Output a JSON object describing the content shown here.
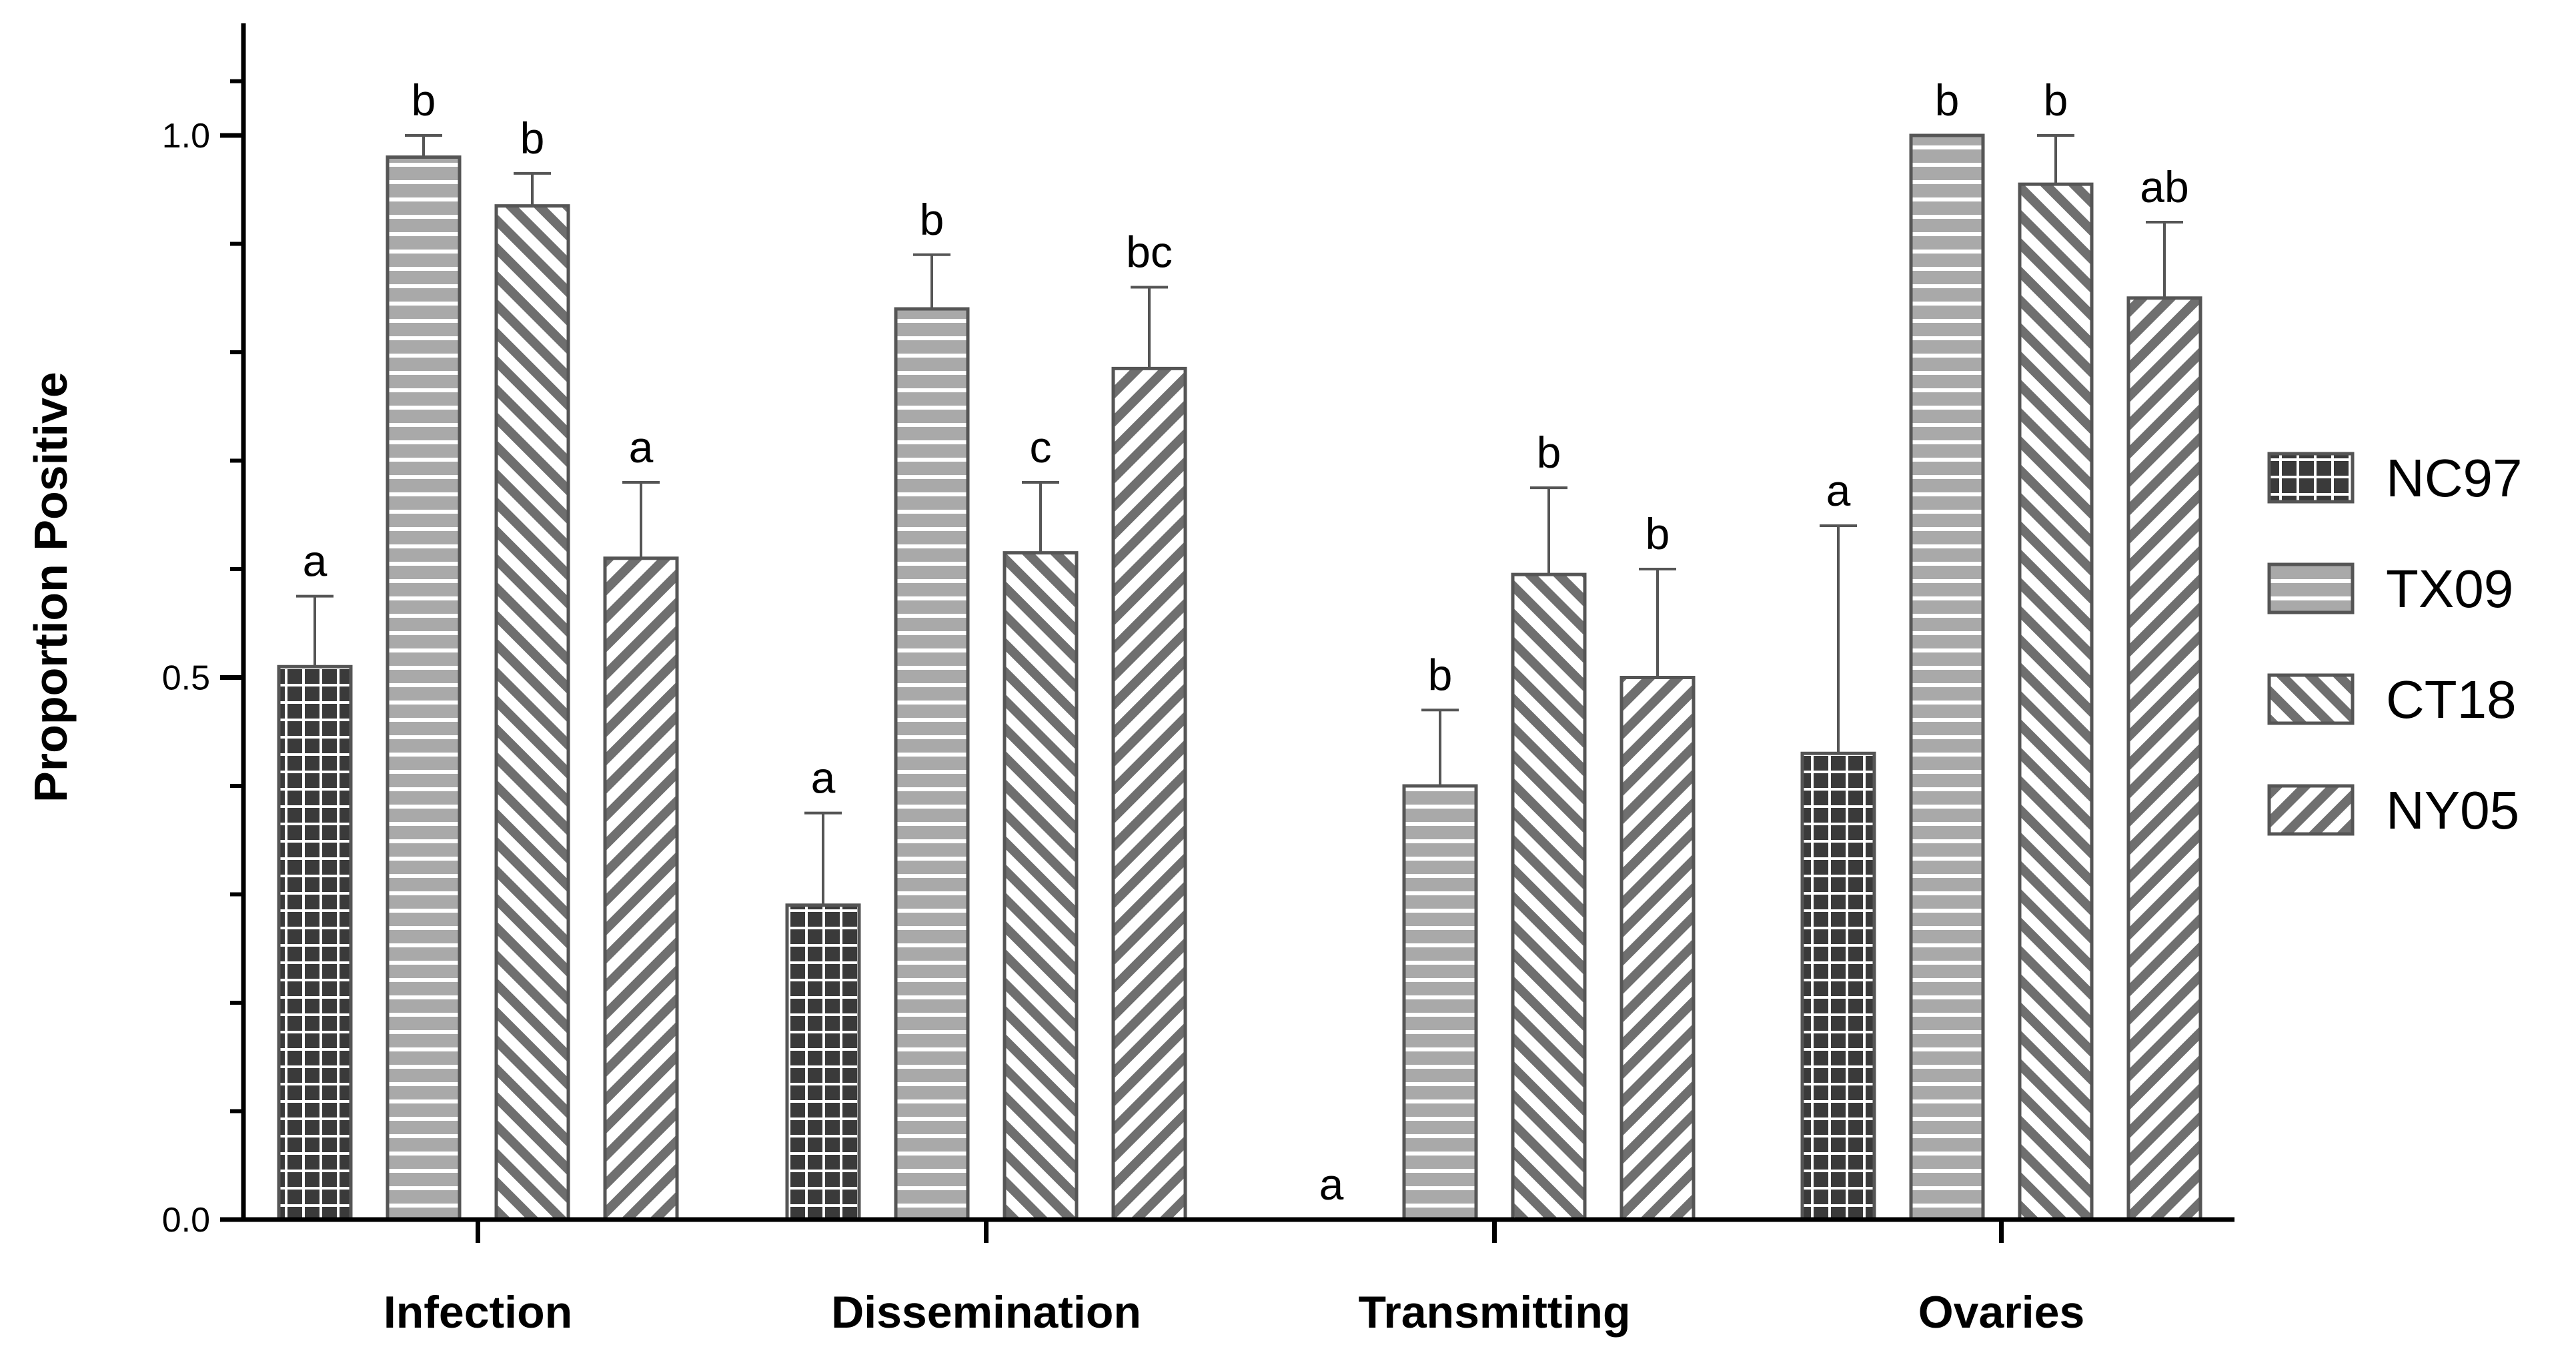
{
  "chart_data": {
    "type": "bar",
    "title": "",
    "xlabel": "",
    "ylabel": "Proportion Positive",
    "ylim": [
      0,
      1.1
    ],
    "yticks": [
      0.0,
      0.5,
      1.0
    ],
    "ytick_labels": [
      "0.0",
      "0.5",
      "1.0"
    ],
    "categories": [
      "Infection",
      "Dissemination",
      "Transmitting",
      "Ovaries"
    ],
    "legend_position": "right",
    "series": [
      {
        "name": "NC97",
        "pattern": "grid",
        "values": [
          0.51,
          0.29,
          0.0,
          0.43
        ],
        "errors": [
          0.065,
          0.085,
          0.0,
          0.21
        ],
        "letters": [
          "a",
          "a",
          "a",
          "a"
        ]
      },
      {
        "name": "TX09",
        "pattern": "horizontal",
        "values": [
          0.98,
          0.84,
          0.4,
          1.0
        ],
        "errors": [
          0.02,
          0.05,
          0.07,
          0.0
        ],
        "letters": [
          "b",
          "b",
          "b",
          "b"
        ]
      },
      {
        "name": "CT18",
        "pattern": "diagonal-down",
        "values": [
          0.935,
          0.615,
          0.595,
          0.955
        ],
        "errors": [
          0.03,
          0.065,
          0.08,
          0.045
        ],
        "letters": [
          "b",
          "c",
          "b",
          "b"
        ]
      },
      {
        "name": "NY05",
        "pattern": "diagonal-up",
        "values": [
          0.61,
          0.785,
          0.5,
          0.85
        ],
        "errors": [
          0.07,
          0.075,
          0.1,
          0.07
        ],
        "letters": [
          "a",
          "bc",
          "b",
          "ab"
        ]
      }
    ],
    "colors": {
      "axis": "#000000",
      "bar_edge": "#555555",
      "nc97_fill": "#3a3a3a",
      "nc97_line": "#ffffff",
      "tx09_fill": "#a9a9a9",
      "tx09_line": "#ffffff",
      "hatch_fill": "#ffffff",
      "hatch_line": "#6f6f6f"
    }
  }
}
